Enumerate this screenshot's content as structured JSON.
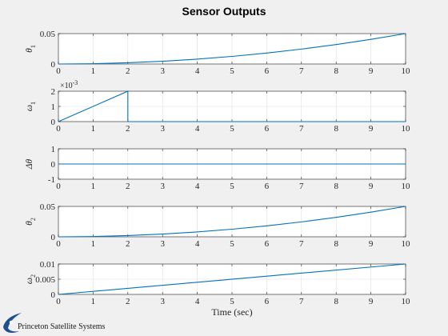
{
  "figure": {
    "title": "Sensor Outputs",
    "logo_text": "Princeton Satellite Systems",
    "colors": {
      "background": "#f0f0f0",
      "axes": "#ffffff",
      "line": "#0072bd",
      "grid": "#dfdfdf",
      "text": "#262626"
    }
  },
  "chart_data": [
    {
      "type": "line",
      "ylabel": "θ",
      "ylabel_sub": "1",
      "xlim": [
        0,
        10
      ],
      "ylim": [
        0,
        0.05
      ],
      "xticks": [
        "0",
        "1",
        "2",
        "3",
        "4",
        "5",
        "6",
        "7",
        "8",
        "9",
        "10"
      ],
      "yticks": [
        {
          "value": 0,
          "label": "0"
        },
        {
          "value": 0.05,
          "label": "0.05"
        }
      ],
      "grid": true,
      "series": [
        {
          "x": [
            0,
            1,
            2,
            3,
            4,
            5,
            6,
            7,
            8,
            9,
            10
          ],
          "values": [
            0,
            0.0005,
            0.002,
            0.0045,
            0.008,
            0.0125,
            0.018,
            0.0245,
            0.032,
            0.0405,
            0.05
          ]
        }
      ]
    },
    {
      "type": "line",
      "ylabel": "ω",
      "ylabel_sub": "1",
      "exponent_label": "×10",
      "exponent_power": "-3",
      "xlim": [
        0,
        10
      ],
      "ylim": [
        0,
        2
      ],
      "xticks": [
        "0",
        "1",
        "2",
        "3",
        "4",
        "5",
        "6",
        "7",
        "8",
        "9",
        "10"
      ],
      "yticks": [
        {
          "value": 0,
          "label": "0"
        },
        {
          "value": 1,
          "label": "1"
        },
        {
          "value": 2,
          "label": "2"
        }
      ],
      "grid": true,
      "series": [
        {
          "x": [
            0,
            2,
            2,
            10
          ],
          "values": [
            0,
            2,
            0,
            0
          ]
        }
      ]
    },
    {
      "type": "line",
      "ylabel": "Δθ",
      "ylabel_sub": "",
      "xlim": [
        0,
        10
      ],
      "ylim": [
        -1,
        1
      ],
      "xticks": [
        "0",
        "1",
        "2",
        "3",
        "4",
        "5",
        "6",
        "7",
        "8",
        "9",
        "10"
      ],
      "yticks": [
        {
          "value": -1,
          "label": "-1"
        },
        {
          "value": 0,
          "label": "0"
        },
        {
          "value": 1,
          "label": "1"
        }
      ],
      "grid": true,
      "series": [
        {
          "x": [
            0,
            10
          ],
          "values": [
            0,
            0
          ]
        }
      ]
    },
    {
      "type": "line",
      "ylabel": "θ",
      "ylabel_sub": "2",
      "xlim": [
        0,
        10
      ],
      "ylim": [
        0,
        0.05
      ],
      "xticks": [
        "0",
        "1",
        "2",
        "3",
        "4",
        "5",
        "6",
        "7",
        "8",
        "9",
        "10"
      ],
      "yticks": [
        {
          "value": 0,
          "label": "0"
        },
        {
          "value": 0.05,
          "label": "0.05"
        }
      ],
      "grid": true,
      "series": [
        {
          "x": [
            0,
            1,
            2,
            3,
            4,
            5,
            6,
            7,
            8,
            9,
            10
          ],
          "values": [
            0,
            0.0005,
            0.002,
            0.0045,
            0.008,
            0.0125,
            0.018,
            0.0245,
            0.032,
            0.0405,
            0.05
          ]
        }
      ]
    },
    {
      "type": "line",
      "ylabel": "ω",
      "ylabel_sub": "2",
      "xlabel": "Time (sec)",
      "xlim": [
        0,
        10
      ],
      "ylim": [
        0,
        0.01
      ],
      "xticks": [
        "0",
        "1",
        "2",
        "3",
        "4",
        "5",
        "6",
        "7",
        "8",
        "9",
        "10"
      ],
      "yticks": [
        {
          "value": 0,
          "label": "0"
        },
        {
          "value": 0.005,
          "label": "0.005"
        },
        {
          "value": 0.01,
          "label": "0.01"
        }
      ],
      "grid": true,
      "series": [
        {
          "x": [
            0,
            10
          ],
          "values": [
            0,
            0.01
          ]
        }
      ]
    }
  ]
}
